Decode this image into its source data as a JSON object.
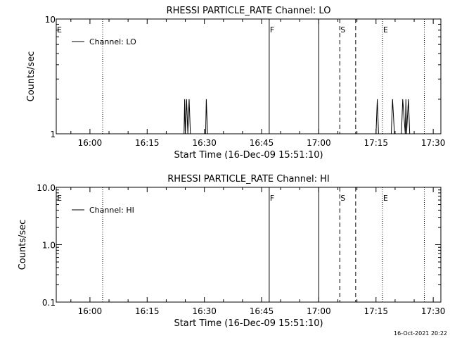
{
  "timestamp": "16-Oct-2021 20:22",
  "chart_data": [
    {
      "type": "line",
      "title": "RHESSI PARTICLE_RATE Channel: LO",
      "xlabel": "Start Time (16-Dec-09 15:51:10)",
      "ylabel": "Counts/sec",
      "x_ticks": [
        "16:00",
        "16:15",
        "16:30",
        "16:45",
        "17:00",
        "17:15",
        "17:30"
      ],
      "y_scale": "log",
      "y_ticks": [
        "1",
        "10"
      ],
      "ylim": [
        1,
        10
      ],
      "xlim": [
        "15:51:10",
        "17:32:00"
      ],
      "legend": "Channel: LO",
      "legend_position": "top-left",
      "series": [
        {
          "name": "Channel: LO",
          "points": [
            [
              "16:24:40",
              1
            ],
            [
              "16:24:50",
              2
            ],
            [
              "16:25:00",
              1
            ],
            [
              "16:25:20",
              2
            ],
            [
              "16:25:40",
              1
            ],
            [
              "16:26:00",
              2
            ],
            [
              "16:26:20",
              1
            ],
            [
              "16:30:20",
              1
            ],
            [
              "16:30:30",
              2
            ],
            [
              "16:30:50",
              1
            ],
            [
              "17:15:00",
              1
            ],
            [
              "17:15:20",
              2
            ],
            [
              "17:15:40",
              1
            ],
            [
              "17:19:00",
              1
            ],
            [
              "17:19:20",
              2
            ],
            [
              "17:19:50",
              1
            ],
            [
              "17:21:40",
              1
            ],
            [
              "17:22:00",
              2
            ],
            [
              "17:22:40",
              1
            ],
            [
              "17:22:50",
              2
            ],
            [
              "17:23:00",
              1
            ],
            [
              "17:23:30",
              2
            ],
            [
              "17:23:50",
              1
            ]
          ]
        }
      ],
      "markers": [
        {
          "time": "15:51:10",
          "label": "E",
          "style": "dotted"
        },
        {
          "time": "16:03:20",
          "label": "",
          "style": "dotted"
        },
        {
          "time": "16:47:00",
          "label": "F",
          "style": "solid"
        },
        {
          "time": "17:00:00",
          "label": "",
          "style": "solid"
        },
        {
          "time": "17:05:30",
          "label": "S",
          "style": "dashed"
        },
        {
          "time": "17:09:40",
          "label": "",
          "style": "dashed"
        },
        {
          "time": "17:16:40",
          "label": "E",
          "style": "dotted"
        },
        {
          "time": "17:27:40",
          "label": "",
          "style": "dotted"
        }
      ]
    },
    {
      "type": "line",
      "title": "RHESSI PARTICLE_RATE Channel: HI",
      "xlabel": "Start Time (16-Dec-09 15:51:10)",
      "ylabel": "Counts/sec",
      "x_ticks": [
        "16:00",
        "16:15",
        "16:30",
        "16:45",
        "17:00",
        "17:15",
        "17:30"
      ],
      "y_scale": "log",
      "y_ticks": [
        "0.1",
        "1.0",
        "10.0"
      ],
      "ylim": [
        0.1,
        10
      ],
      "xlim": [
        "15:51:10",
        "17:32:00"
      ],
      "legend": "Channel: HI",
      "legend_position": "top-left",
      "series": [
        {
          "name": "Channel: HI",
          "points": []
        }
      ],
      "markers": [
        {
          "time": "15:51:10",
          "label": "E",
          "style": "dotted"
        },
        {
          "time": "16:03:20",
          "label": "",
          "style": "dotted"
        },
        {
          "time": "16:47:00",
          "label": "F",
          "style": "solid"
        },
        {
          "time": "17:00:00",
          "label": "",
          "style": "solid"
        },
        {
          "time": "17:05:30",
          "label": "S",
          "style": "dashed"
        },
        {
          "time": "17:09:40",
          "label": "",
          "style": "dashed"
        },
        {
          "time": "17:16:40",
          "label": "E",
          "style": "dotted"
        },
        {
          "time": "17:27:40",
          "label": "",
          "style": "dotted"
        }
      ]
    }
  ]
}
